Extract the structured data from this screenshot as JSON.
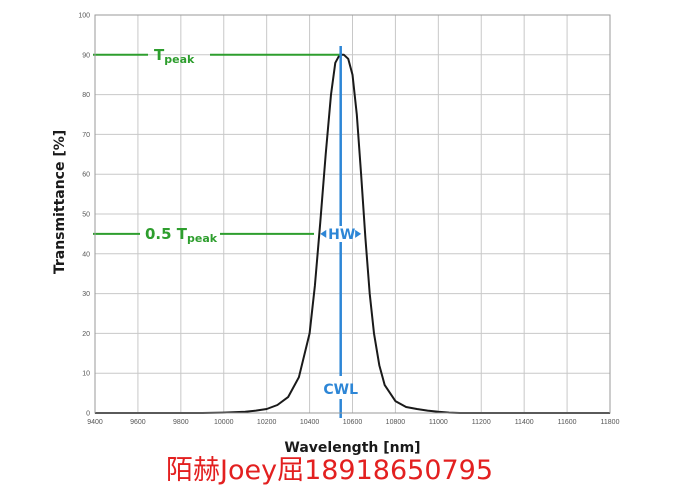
{
  "chart_data": {
    "type": "line",
    "xlabel": "Wavelength [nm]",
    "ylabel": "Transmittance [%]",
    "xlim": [
      9400,
      11800
    ],
    "ylim": [
      0,
      100
    ],
    "x_ticks": [
      9400,
      9600,
      9800,
      10000,
      10200,
      10400,
      10600,
      10800,
      11000,
      11200,
      11400,
      11600,
      11800
    ],
    "y_ticks": [
      0,
      10,
      20,
      30,
      40,
      50,
      60,
      70,
      80,
      90,
      100
    ],
    "grid": true,
    "series": [
      {
        "color": "#1a1a1a",
        "x": [
          9400,
          9500,
          9600,
          9700,
          9800,
          9900,
          10000,
          10100,
          10150,
          10200,
          10250,
          10300,
          10350,
          10400,
          10425,
          10450,
          10475,
          10500,
          10520,
          10540,
          10560,
          10580,
          10600,
          10620,
          10640,
          10660,
          10680,
          10700,
          10725,
          10750,
          10800,
          10850,
          10900,
          10950,
          11000,
          11050,
          11100,
          11200,
          11300,
          11400,
          11500,
          11600,
          11700,
          11800
        ],
        "y": [
          0,
          0,
          0,
          0,
          0,
          0,
          0.1,
          0.3,
          0.6,
          1,
          2,
          4,
          9,
          20,
          32,
          48,
          65,
          80,
          88,
          90,
          90,
          89,
          85,
          75,
          60,
          44,
          30,
          20,
          12,
          7,
          3,
          1.5,
          1,
          0.6,
          0.3,
          0.1,
          0,
          0,
          0,
          0,
          0,
          0,
          0,
          0
        ]
      }
    ],
    "annotations": {
      "t_peak": {
        "text": "T",
        "sub": "peak",
        "y": 90
      },
      "half_peak": {
        "text": "0.5 T",
        "sub": "peak",
        "y": 45
      },
      "hw": {
        "text": "HW",
        "x_from": 10445,
        "x_to": 10645,
        "y": 45
      },
      "cwl": {
        "text": "CWL",
        "x": 10545
      }
    },
    "colors": {
      "annotation_green": "#2e9e2e",
      "annotation_blue": "#2d86d6",
      "curve": "#1a1a1a",
      "grid": "#c8c8c8"
    }
  },
  "watermark": "陌赫Joey屈18918650795"
}
